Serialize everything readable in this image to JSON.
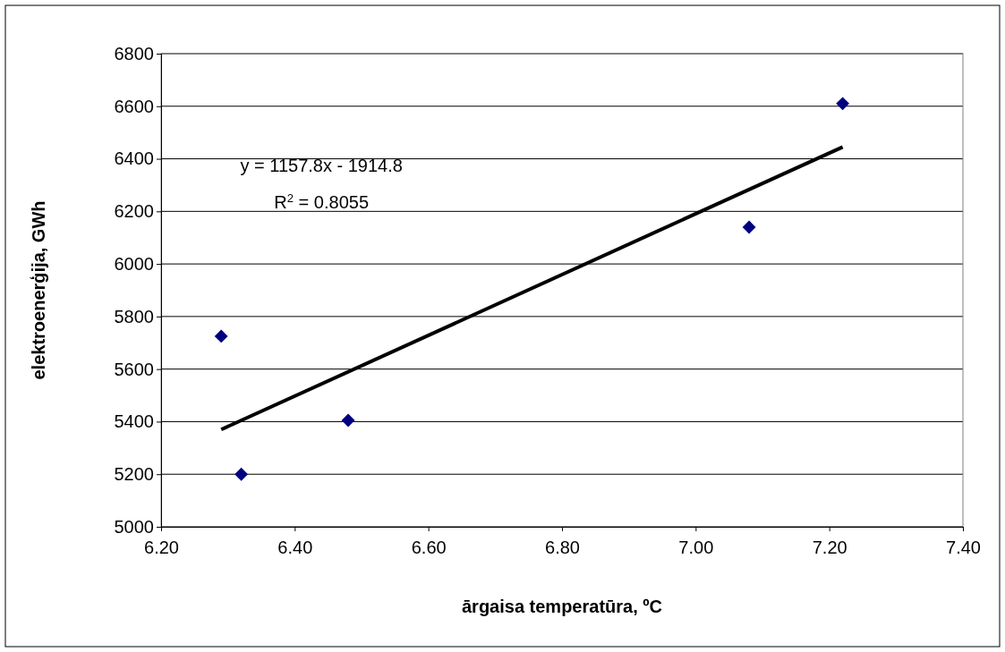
{
  "chart_data": {
    "type": "scatter",
    "xlabel": "ārgaisa temperatūra, ºC",
    "ylabel": "elektroenerģija, GWh",
    "xlim": [
      6.2,
      7.4
    ],
    "xticks": [
      {
        "value": 6.2,
        "label": "6.20"
      },
      {
        "value": 6.4,
        "label": "6.40"
      },
      {
        "value": 6.6,
        "label": "6.60"
      },
      {
        "value": 6.8,
        "label": "6.80"
      },
      {
        "value": 7,
        "label": "7.00"
      },
      {
        "value": 7.2,
        "label": "7.20"
      },
      {
        "value": 7.4,
        "label": "7.40"
      }
    ],
    "ylim": [
      5000,
      6800
    ],
    "yticks": [
      5000,
      5200,
      5400,
      5600,
      5800,
      6000,
      6200,
      6400,
      6600,
      6800
    ],
    "grid": "y",
    "marker": "diamond",
    "series": [
      {
        "color": "#000080",
        "x": [
          6.29,
          6.32,
          6.48,
          7.08,
          7.22
        ],
        "values": [
          5725,
          5200,
          5405,
          6140,
          6610
        ]
      },
      {
        "type": "line",
        "marker": "none",
        "color": "#000000",
        "x": [
          6.29,
          7.22
        ],
        "values": [
          5370,
          6445
        ]
      }
    ],
    "annotations": [
      "y = 1157.8x - 1914.8",
      "R$^{2}$ = 0.8055"
    ]
  }
}
